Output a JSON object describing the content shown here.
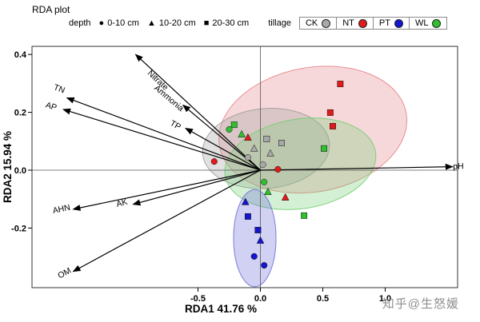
{
  "title": "RDA plot",
  "watermark": "知乎@生怒媛",
  "legend": {
    "depth": {
      "label": "depth",
      "items": [
        {
          "shape": "circle",
          "label": "0-10 cm"
        },
        {
          "shape": "triangle",
          "label": "10-20 cm"
        },
        {
          "shape": "square",
          "label": "20-30 cm"
        }
      ]
    },
    "tillage": {
      "label": "tillage",
      "items": [
        {
          "label": "CK",
          "color": "#a8a8a8"
        },
        {
          "label": "NT",
          "color": "#e01b1b"
        },
        {
          "label": "PT",
          "color": "#1515cf"
        },
        {
          "label": "WL",
          "color": "#2fbf2f"
        }
      ]
    }
  },
  "chart_data": {
    "type": "scatter",
    "title": "RDA plot",
    "xlabel": "RDA1 41.76  %",
    "ylabel": "RDA2 15.94  %",
    "xlim": [
      -1.83,
      1.58
    ],
    "ylim": [
      -0.406,
      0.428
    ],
    "xticks": [
      -0.5,
      0.0,
      0.5,
      1.0
    ],
    "yticks": [
      0.4,
      0.2,
      0.0,
      -0.2
    ],
    "grid": false,
    "legend_position": "top",
    "arrows": [
      {
        "label": "Nitrate",
        "x": -1.0,
        "y": 0.4,
        "lt": 0.8,
        "lo": 8
      },
      {
        "label": "TN",
        "x": -1.55,
        "y": 0.25,
        "lt": 1.05,
        "lo": -4
      },
      {
        "label": "AP",
        "x": -1.58,
        "y": 0.21,
        "lt": 1.06,
        "lo": 4
      },
      {
        "label": "Ammonia",
        "x": -0.62,
        "y": 0.225,
        "lt": 1.15,
        "lo": 8
      },
      {
        "label": "TP",
        "x": -0.6,
        "y": 0.145,
        "lt": 1.12,
        "lo": 6
      },
      {
        "label": "AHN",
        "x": -1.5,
        "y": -0.135,
        "lt": 1.06,
        "lo": 0
      },
      {
        "label": "AK",
        "x": -1.02,
        "y": -0.118,
        "lt": 1.08,
        "lo": -2
      },
      {
        "label": "OM",
        "x": -1.5,
        "y": -0.35,
        "lt": 1.04,
        "lo": 0
      },
      {
        "label": "pH",
        "x": 1.54,
        "y": 0.012,
        "lt": 1.03,
        "lo": -3
      }
    ],
    "ellipses": [
      {
        "group": "NT",
        "cx": 0.42,
        "cy": 0.14,
        "rx": 0.76,
        "ry": 0.215,
        "rot": -10,
        "color": "#e57f86"
      },
      {
        "group": "CK",
        "cx": 0.045,
        "cy": 0.075,
        "rx": 0.51,
        "ry": 0.138,
        "rot": -5,
        "color": "#9a9a9a"
      },
      {
        "group": "WL",
        "cx": 0.32,
        "cy": 0.022,
        "rx": 0.61,
        "ry": 0.155,
        "rot": -9,
        "color": "#6fce6f"
      },
      {
        "group": "PT",
        "cx": -0.045,
        "cy": -0.235,
        "rx": 0.17,
        "ry": 0.168,
        "rot": 0,
        "color": "#6868d8"
      }
    ],
    "series": [
      {
        "name": "CK",
        "color": "#a8a8a8",
        "points": [
          {
            "shape": "square",
            "x": 0.05,
            "y": 0.108
          },
          {
            "shape": "square",
            "x": 0.17,
            "y": 0.094
          },
          {
            "shape": "triangle",
            "x": -0.05,
            "y": 0.075
          },
          {
            "shape": "triangle",
            "x": 0.08,
            "y": 0.058
          },
          {
            "shape": "circle",
            "x": -0.1,
            "y": 0.044
          },
          {
            "shape": "circle",
            "x": 0.02,
            "y": 0.019
          }
        ]
      },
      {
        "name": "NT",
        "color": "#e01b1b",
        "points": [
          {
            "shape": "square",
            "x": 0.64,
            "y": 0.298
          },
          {
            "shape": "square",
            "x": 0.56,
            "y": 0.199
          },
          {
            "shape": "square",
            "x": 0.58,
            "y": 0.152
          },
          {
            "shape": "triangle",
            "x": -0.1,
            "y": 0.113
          },
          {
            "shape": "triangle",
            "x": 0.2,
            "y": -0.094
          },
          {
            "shape": "circle",
            "x": 0.14,
            "y": 0.003
          },
          {
            "shape": "circle",
            "x": -0.37,
            "y": 0.03
          }
        ]
      },
      {
        "name": "PT",
        "color": "#1515cf",
        "points": [
          {
            "shape": "triangle",
            "x": -0.12,
            "y": -0.11
          },
          {
            "shape": "square",
            "x": -0.1,
            "y": -0.16
          },
          {
            "shape": "square",
            "x": -0.02,
            "y": -0.207
          },
          {
            "shape": "triangle",
            "x": 0.0,
            "y": -0.243
          },
          {
            "shape": "circle",
            "x": -0.05,
            "y": -0.298
          },
          {
            "shape": "circle",
            "x": 0.03,
            "y": -0.329
          }
        ]
      },
      {
        "name": "WL",
        "color": "#2fbf2f",
        "points": [
          {
            "shape": "square",
            "x": -0.21,
            "y": 0.157
          },
          {
            "shape": "square",
            "x": 0.51,
            "y": 0.075
          },
          {
            "shape": "square",
            "x": 0.35,
            "y": -0.157
          },
          {
            "shape": "triangle",
            "x": -0.15,
            "y": 0.124
          },
          {
            "shape": "triangle",
            "x": 0.06,
            "y": -0.075
          },
          {
            "shape": "circle",
            "x": -0.25,
            "y": 0.141
          },
          {
            "shape": "circle",
            "x": 0.03,
            "y": -0.041
          }
        ]
      }
    ]
  }
}
